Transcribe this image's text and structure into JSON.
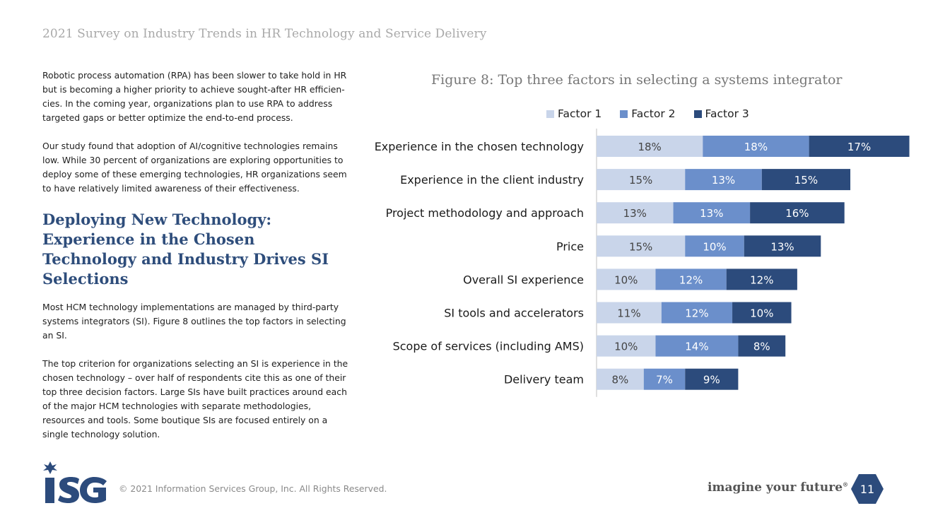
{
  "header": {
    "title": "2021 Survey on Industry Trends in HR Technology and Service Delivery"
  },
  "left": {
    "para1": "Robotic process automation (RPA) has been slower to take hold in HR but is becoming a higher priority to achieve sought-after HR efficien-cies. In the coming year, organizations plan to use RPA to address targeted gaps or better optimize the end-to-end process.",
    "para2": "Our study found that adoption of AI/cognitive technologies remains low. While 30 percent of organizations are exploring opportunities to deploy some of these emerging technologies, HR organizations seem to have relatively limited awareness of their effectiveness.",
    "section_title": "Deploying New Technology: Experience in the Chosen Technology and Industry Drives SI Selections",
    "para3": "Most HCM technology implementations are managed by third-party systems integrators (SI). Figure 8 outlines the top factors in selecting an SI.",
    "para4": "The top criterion for organizations selecting an SI is experience in the chosen technology – over half of respondents cite this as one of their top three decision factors. Large SIs have built practices around each of the major HCM technologies with separate methodologies, resources and tools. Some boutique SIs are focused entirely on a single technology solution."
  },
  "chart_data": {
    "type": "bar",
    "orientation": "horizontal",
    "stacked": true,
    "title": "Figure 8: Top three factors in selecting a systems integrator",
    "categories": [
      "Experience in the chosen technology",
      "Experience in the client industry",
      "Project methodology and approach",
      "Price",
      "Overall SI experience",
      "SI tools and accelerators",
      "Scope of services (including AMS)",
      "Delivery team"
    ],
    "series": [
      {
        "name": "Factor 1",
        "color": "#c9d5ea",
        "label_color": "#444444",
        "values": [
          18,
          15,
          13,
          15,
          10,
          11,
          10,
          8
        ]
      },
      {
        "name": "Factor 2",
        "color": "#6b8fcb",
        "label_color": "#ffffff",
        "values": [
          18,
          13,
          13,
          10,
          12,
          12,
          14,
          7
        ]
      },
      {
        "name": "Factor 3",
        "color": "#2c4b7c",
        "label_color": "#ffffff",
        "values": [
          17,
          15,
          16,
          13,
          12,
          10,
          8,
          9
        ]
      }
    ],
    "value_suffix": "%",
    "legend_position": "top",
    "grid": false
  },
  "footer": {
    "copyright": "© 2021 Information Services Group, Inc. All Rights Reserved.",
    "logo_text": "ISG",
    "tagline": "imagine your future",
    "tagline_mark": "®",
    "page_number": "11"
  },
  "colors": {
    "title_blue": "#2e4d7b",
    "hex_blue": "#2c4b7c"
  }
}
